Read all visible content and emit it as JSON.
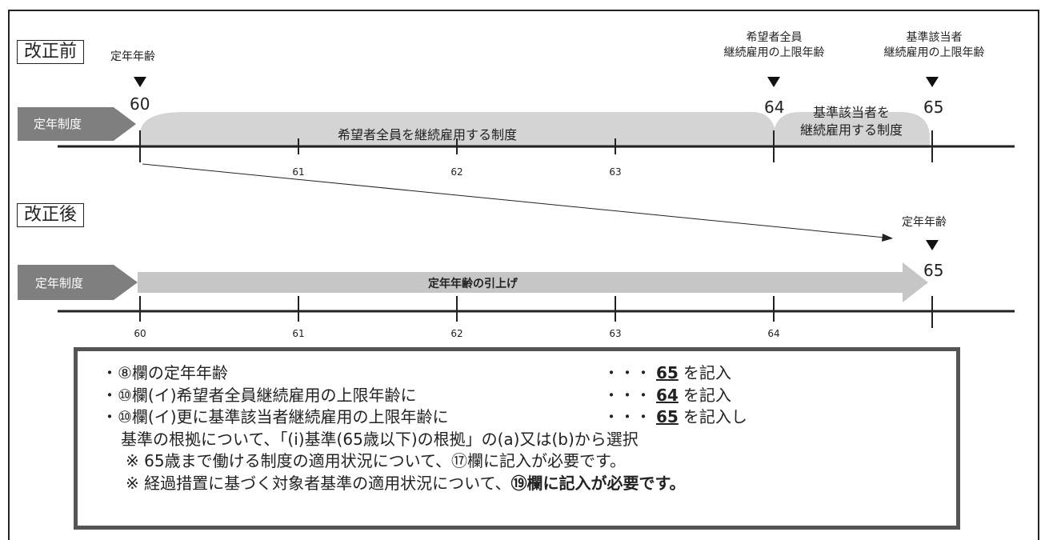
{
  "before": {
    "section_label": "改正前",
    "teinen_label": "定年年齢",
    "kibou_label_l1": "希望者全員",
    "kibou_label_l2": "継続雇用の上限年齢",
    "kijun_label_l1": "基準該当者",
    "kijun_label_l2": "継続雇用の上限年齢",
    "arrow_label": "定年制度",
    "age_60": "60",
    "age_64": "64",
    "age_65": "65",
    "band1_text": "希望者全員を継続雇用する制度",
    "band2_text_l1": "基準該当者を",
    "band2_text_l2": "継続雇用する制度",
    "ticks": [
      "61",
      "62",
      "63"
    ]
  },
  "after": {
    "section_label": "改正後",
    "teinen_label": "定年年齢",
    "arrow_label": "定年制度",
    "arrow_text": "定年年齢の引上げ",
    "age_65": "65",
    "ticks": [
      "60",
      "61",
      "62",
      "63",
      "64"
    ]
  },
  "notes": {
    "line1_left": "・⑧欄の定年年齢",
    "line1_dots": "・・・",
    "line1_value": "65",
    "line1_suffix": "を記入",
    "line2_left": "・⑩欄(イ)希望者全員継続雇用の上限年齢に",
    "line2_dots": "・・・",
    "line2_value": "64",
    "line2_suffix": "を記入",
    "line3_left": "・⑩欄(イ)更に基準該当者継続雇用の上限年齢に",
    "line3_dots": "・・・",
    "line3_value": "65",
    "line3_suffix": "を記入し",
    "line4": "基準の根拠について、「(ⅰ)基準(65歳以下)の根拠」の(a)又は(b)から選択",
    "line5": "※ 65歳まで働ける制度の適用状況について、⑰欄に記入が必要です。",
    "line6_normal": "※ 経過措置に基づく対象者基準の適用状況について、",
    "line6_bold": "⑲欄に記入が必要です。"
  }
}
